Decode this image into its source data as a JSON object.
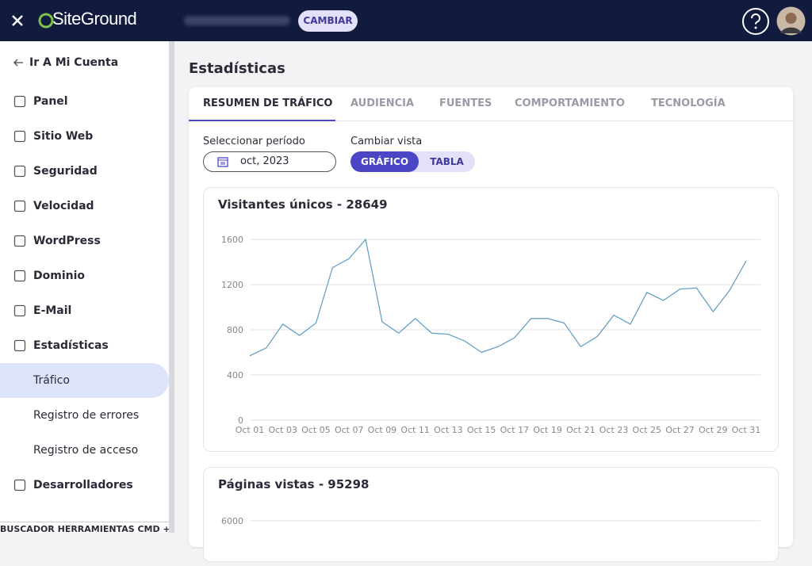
{
  "header": {
    "logo": "SiteGround",
    "button": "CAMBIAR"
  },
  "sidebar": {
    "back": "Ir A Mi Cuenta",
    "menu": [
      "Panel",
      "Sitio Web",
      "Seguridad",
      "Velocidad",
      "WordPress",
      "Dominio",
      "E-Mail",
      "Estadísticas"
    ],
    "submenu": [
      "Tráfico",
      "Registro de errores",
      "Registro de acceso"
    ],
    "menu_end": "Desarrolladores",
    "search": "BUSCADOR HERRAMIENTAS CMD + K"
  },
  "page": {
    "title": "Estadísticas",
    "tabs": [
      "RESUMEN DE TRÁFICO",
      "AUDIENCIA",
      "FUENTES",
      "COMPORTAMIENTO",
      "TECNOLOGÍA"
    ],
    "period_label": "Seleccionar período",
    "period_value": "oct, 2023",
    "view_label": "Cambiar vista",
    "view_options": [
      "GRÁFICO",
      "TABLA"
    ]
  },
  "chart_data": [
    {
      "type": "line",
      "title": "Visitantes únicos - 28649",
      "categories": [
        "Oct 01",
        null,
        "Oct 03",
        null,
        "Oct 05",
        null,
        "Oct 07",
        null,
        "Oct 09",
        null,
        "Oct 11",
        null,
        "Oct 13",
        null,
        "Oct 15",
        null,
        "Oct 17",
        null,
        "Oct 19",
        null,
        "Oct 21",
        null,
        "Oct 23",
        null,
        "Oct 25",
        null,
        "Oct 27",
        null,
        "Oct 29",
        null,
        "Oct 31"
      ],
      "values": [
        570,
        640,
        850,
        750,
        860,
        1350,
        1430,
        1600,
        870,
        770,
        900,
        770,
        760,
        700,
        600,
        650,
        730,
        900,
        900,
        860,
        650,
        740,
        930,
        850,
        1130,
        1060,
        1160,
        1170,
        960,
        1150,
        1410
      ],
      "color": "#5b9bc0",
      "ylim": [
        0,
        1600
      ],
      "yticks": [
        0,
        400,
        800,
        1200,
        1600
      ],
      "grid": true
    },
    {
      "type": "line",
      "title": "Páginas vistas - 95298",
      "yticks": [
        6000
      ],
      "grid": true
    }
  ]
}
